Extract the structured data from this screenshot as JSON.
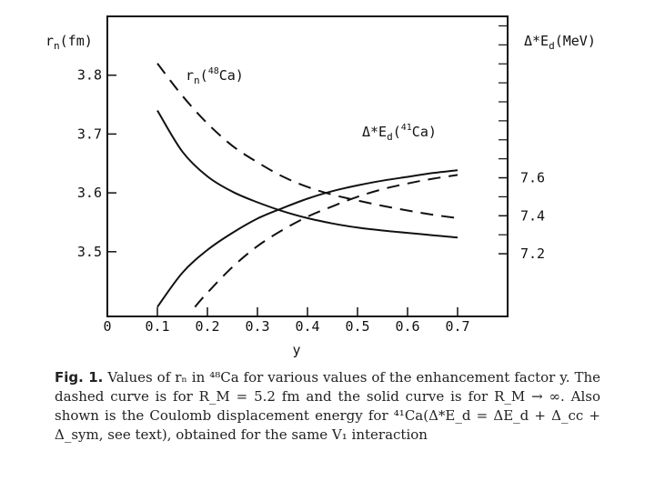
{
  "chart_data": {
    "type": "line",
    "xlabel": "y",
    "x_ticks": [
      "0",
      "0.1",
      "0.2",
      "0.3",
      "0.4",
      "0.5",
      "0.6",
      "0.7"
    ],
    "xlim": [
      0,
      0.8
    ],
    "left_axis": {
      "label_main": "r",
      "label_sub": "n",
      "label_tail": "(fm)",
      "ticks": [
        "3.8",
        "3.7",
        "3.6",
        "3.5"
      ],
      "ylim": [
        3.39,
        3.9
      ]
    },
    "right_axis": {
      "label_main": "Δ*E",
      "label_sub": "d",
      "label_tail": "(MeV)",
      "ticks": [
        "7.6",
        "7.4",
        "7.2"
      ],
      "ylim": [
        6.87,
        8.45
      ]
    },
    "curve_labels": {
      "rn": {
        "main": "r",
        "sub": "n",
        "open": "(",
        "sup": "48",
        "tail": "Ca)"
      },
      "ed": {
        "main": "Δ*E",
        "sub": "d",
        "open": "(",
        "sup": "41",
        "tail": "Ca)"
      }
    },
    "series": [
      {
        "group": "rn",
        "axis": "left",
        "style": "dashed",
        "x": [
          0.1,
          0.15,
          0.2,
          0.25,
          0.3,
          0.35,
          0.4,
          0.45,
          0.5,
          0.55,
          0.6,
          0.65,
          0.7
        ],
        "y": [
          3.82,
          3.765,
          3.718,
          3.68,
          3.652,
          3.628,
          3.61,
          3.597,
          3.587,
          3.578,
          3.57,
          3.563,
          3.557
        ]
      },
      {
        "group": "rn",
        "axis": "left",
        "style": "solid",
        "x": [
          0.1,
          0.15,
          0.2,
          0.25,
          0.3,
          0.35,
          0.4,
          0.45,
          0.5,
          0.55,
          0.6,
          0.65,
          0.7
        ],
        "y": [
          3.74,
          3.67,
          3.628,
          3.602,
          3.584,
          3.569,
          3.557,
          3.548,
          3.541,
          3.536,
          3.532,
          3.528,
          3.524
        ]
      },
      {
        "group": "ed",
        "axis": "right",
        "style": "solid",
        "x": [
          0.1,
          0.15,
          0.2,
          0.25,
          0.3,
          0.35,
          0.4,
          0.45,
          0.5,
          0.55,
          0.6,
          0.65,
          0.7
        ],
        "y": [
          6.92,
          7.1,
          7.22,
          7.31,
          7.385,
          7.44,
          7.49,
          7.53,
          7.56,
          7.585,
          7.605,
          7.625,
          7.64
        ]
      },
      {
        "group": "ed",
        "axis": "right",
        "style": "dashed",
        "x": [
          0.175,
          0.2,
          0.25,
          0.3,
          0.35,
          0.4,
          0.45,
          0.5,
          0.55,
          0.6,
          0.65,
          0.7
        ],
        "y": [
          6.92,
          6.995,
          7.13,
          7.24,
          7.325,
          7.395,
          7.45,
          7.5,
          7.54,
          7.57,
          7.595,
          7.615
        ]
      }
    ]
  },
  "caption": {
    "fig_label": "Fig. 1.",
    "text": "Values of rₙ in ⁴⁸Ca for various values of the enhancement factor y. The dashed curve is for R_M = 5.2 fm and the solid curve is for R_M → ∞. Also shown is the Coulomb displacement energy for ⁴¹Ca(Δ*E_d = ΔE_d + Δ_cc + Δ_sym, see text), obtained for the same V₁ interaction"
  }
}
